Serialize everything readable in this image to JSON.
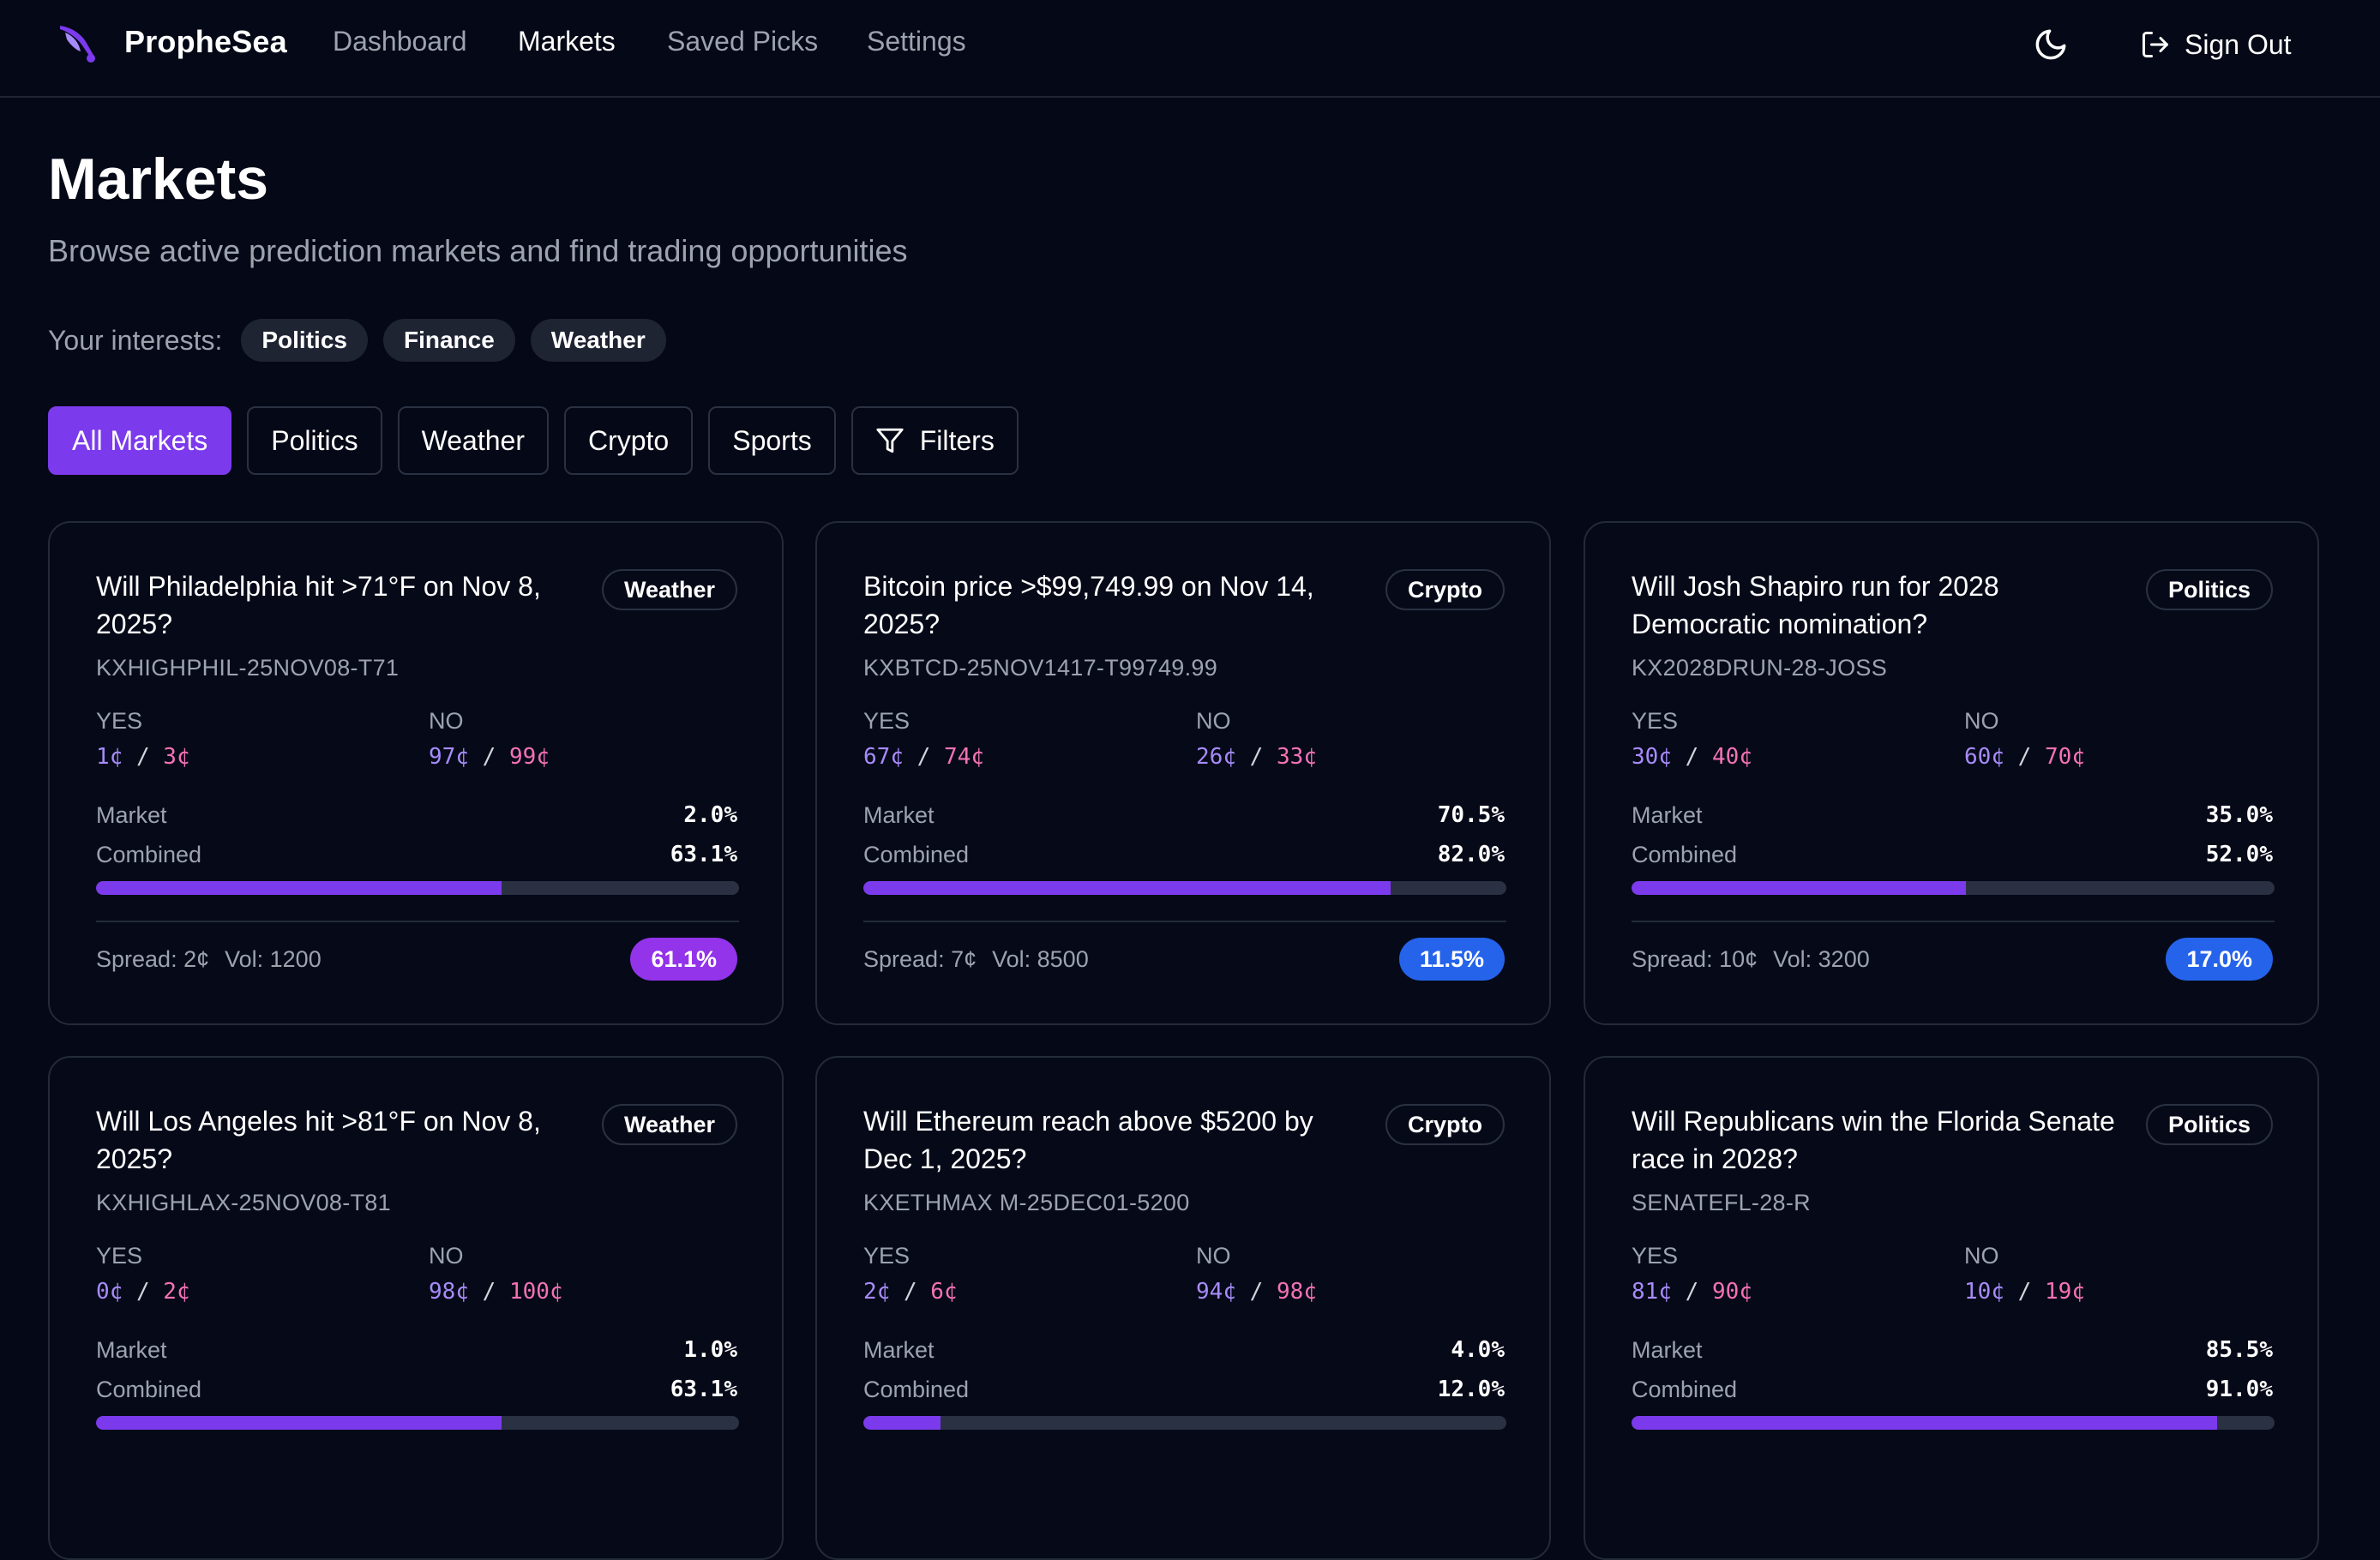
{
  "nav": {
    "brand": "PropheSea",
    "links": [
      "Dashboard",
      "Markets",
      "Saved Picks",
      "Settings"
    ],
    "active": "Markets",
    "sign_out": "Sign Out"
  },
  "header": {
    "title": "Markets",
    "subtitle": "Browse active prediction markets and find trading opportunities",
    "interests_label": "Your interests:",
    "interests": [
      "Politics",
      "Finance",
      "Weather"
    ]
  },
  "tabs": {
    "items": [
      "All Markets",
      "Politics",
      "Weather",
      "Crypto",
      "Sports"
    ],
    "filters": "Filters",
    "active": "All Markets"
  },
  "labels": {
    "yes": "YES",
    "no": "NO",
    "market": "Market",
    "combined": "Combined"
  },
  "colors": {
    "accent": "#7c3aed",
    "edge_purple": "#9333ea",
    "edge_blue": "#2563eb",
    "bid": "#a78bfa",
    "ask": "#f472b6",
    "background": "#050816"
  },
  "markets": [
    {
      "title": "Will Philadelphia hit >71°F on Nov 8, 2025?",
      "category": "Weather",
      "ticker": "KXHIGHPHIL-25NOV08-T71",
      "yes_bid": "1¢",
      "yes_ask": "3¢",
      "no_bid": "97¢",
      "no_ask": "99¢",
      "market": "2.0%",
      "combined": "63.1%",
      "combined_fraction": 0.631,
      "spread": "Spread: 2¢",
      "volume": "Vol: 1200",
      "edge": "61.1%",
      "edge_color": "#9333ea"
    },
    {
      "title": "Bitcoin price >$99,749.99 on Nov 14, 2025?",
      "category": "Crypto",
      "ticker": "KXBTCD-25NOV1417-T99749.99",
      "yes_bid": "67¢",
      "yes_ask": "74¢",
      "no_bid": "26¢",
      "no_ask": "33¢",
      "market": "70.5%",
      "combined": "82.0%",
      "combined_fraction": 0.82,
      "spread": "Spread: 7¢",
      "volume": "Vol: 8500",
      "edge": "11.5%",
      "edge_color": "#2563eb"
    },
    {
      "title": "Will Josh Shapiro run for 2028 Democratic nomination?",
      "category": "Politics",
      "ticker": "KX2028DRUN-28-JOSS",
      "yes_bid": "30¢",
      "yes_ask": "40¢",
      "no_bid": "60¢",
      "no_ask": "70¢",
      "market": "35.0%",
      "combined": "52.0%",
      "combined_fraction": 0.52,
      "spread": "Spread: 10¢",
      "volume": "Vol: 3200",
      "edge": "17.0%",
      "edge_color": "#2563eb"
    },
    {
      "title": "Will Los Angeles hit >81°F on Nov 8, 2025?",
      "category": "Weather",
      "ticker": "KXHIGHLAX-25NOV08-T81",
      "yes_bid": "0¢",
      "yes_ask": "2¢",
      "no_bid": "98¢",
      "no_ask": "100¢",
      "market": "1.0%",
      "combined": "63.1%",
      "combined_fraction": 0.631
    },
    {
      "title": "Will Ethereum reach above $5200 by Dec 1, 2025?",
      "category": "Crypto",
      "ticker": "KXETHMAX M-25DEC01-5200",
      "yes_bid": "2¢",
      "yes_ask": "6¢",
      "no_bid": "94¢",
      "no_ask": "98¢",
      "market": "4.0%",
      "combined": "12.0%",
      "combined_fraction": 0.12
    },
    {
      "title": "Will Republicans win the Florida Senate race in 2028?",
      "category": "Politics",
      "ticker": "SENATEFL-28-R",
      "yes_bid": "81¢",
      "yes_ask": "90¢",
      "no_bid": "10¢",
      "no_ask": "19¢",
      "market": "85.5%",
      "combined": "91.0%",
      "combined_fraction": 0.91
    }
  ]
}
